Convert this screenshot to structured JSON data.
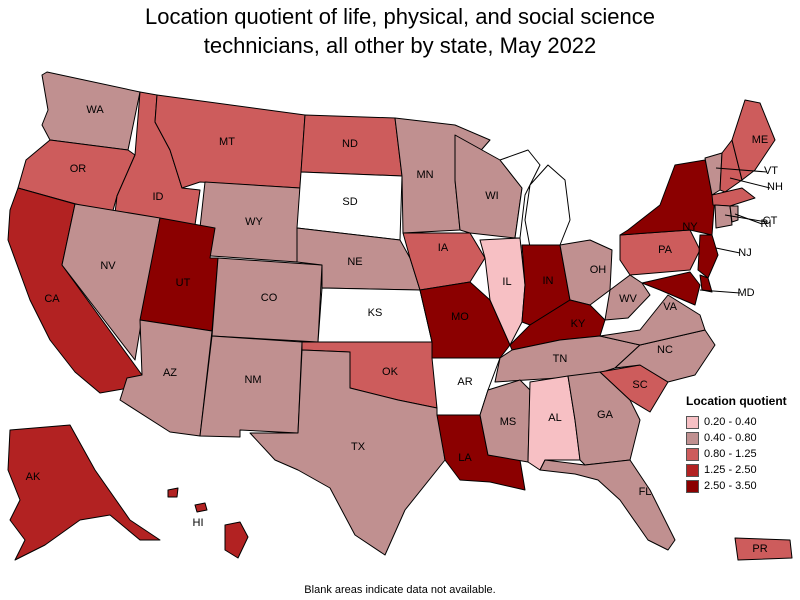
{
  "title_line1": "Location quotient of life, physical, and social science",
  "title_line2": "technicians, all other by state, May 2022",
  "legend": {
    "title": "Location quotient",
    "items": [
      {
        "range": "0.20 - 0.40",
        "color": "#f7c0c4"
      },
      {
        "range": "0.40 - 0.80",
        "color": "#c09090"
      },
      {
        "range": "0.80 - 1.25",
        "color": "#cd5c5c"
      },
      {
        "range": "1.25 - 2.50",
        "color": "#b22222"
      },
      {
        "range": "2.50 - 3.50",
        "color": "#8b0000"
      }
    ]
  },
  "footnote": "Blank areas indicate data not available.",
  "states": [
    {
      "abbr": "WA",
      "class": 1
    },
    {
      "abbr": "OR",
      "class": 2
    },
    {
      "abbr": "CA",
      "class": 3
    },
    {
      "abbr": "ID",
      "class": 2
    },
    {
      "abbr": "NV",
      "class": 1
    },
    {
      "abbr": "MT",
      "class": 2
    },
    {
      "abbr": "WY",
      "class": 1
    },
    {
      "abbr": "UT",
      "class": 4
    },
    {
      "abbr": "AZ",
      "class": 1
    },
    {
      "abbr": "CO",
      "class": 1
    },
    {
      "abbr": "NM",
      "class": 1
    },
    {
      "abbr": "ND",
      "class": 2
    },
    {
      "abbr": "SD",
      "class": -1
    },
    {
      "abbr": "NE",
      "class": 1
    },
    {
      "abbr": "KS",
      "class": -1
    },
    {
      "abbr": "OK",
      "class": 2
    },
    {
      "abbr": "TX",
      "class": 1
    },
    {
      "abbr": "MN",
      "class": 1
    },
    {
      "abbr": "IA",
      "class": 2
    },
    {
      "abbr": "MO",
      "class": 4
    },
    {
      "abbr": "AR",
      "class": -1
    },
    {
      "abbr": "LA",
      "class": 4
    },
    {
      "abbr": "WI",
      "class": 1
    },
    {
      "abbr": "IL",
      "class": 0
    },
    {
      "abbr": "MI",
      "class": -1
    },
    {
      "abbr": "IN",
      "class": 4
    },
    {
      "abbr": "OH",
      "class": 1
    },
    {
      "abbr": "KY",
      "class": 4
    },
    {
      "abbr": "TN",
      "class": 1
    },
    {
      "abbr": "MS",
      "class": 1
    },
    {
      "abbr": "AL",
      "class": 0
    },
    {
      "abbr": "GA",
      "class": 1
    },
    {
      "abbr": "FL",
      "class": 1
    },
    {
      "abbr": "SC",
      "class": 2
    },
    {
      "abbr": "NC",
      "class": 1
    },
    {
      "abbr": "VA",
      "class": 1
    },
    {
      "abbr": "WV",
      "class": 1
    },
    {
      "abbr": "PA",
      "class": 2
    },
    {
      "abbr": "NY",
      "class": 4
    },
    {
      "abbr": "NJ",
      "class": 4
    },
    {
      "abbr": "MD",
      "class": 4
    },
    {
      "abbr": "DE",
      "class": 4
    },
    {
      "abbr": "VT",
      "class": 1
    },
    {
      "abbr": "NH",
      "class": 2
    },
    {
      "abbr": "ME",
      "class": 2
    },
    {
      "abbr": "MA",
      "class": 2
    },
    {
      "abbr": "CT",
      "class": 1
    },
    {
      "abbr": "RI",
      "class": 1
    },
    {
      "abbr": "AK",
      "class": 3
    },
    {
      "abbr": "HI",
      "class": 3
    },
    {
      "abbr": "PR",
      "class": 2
    }
  ]
}
